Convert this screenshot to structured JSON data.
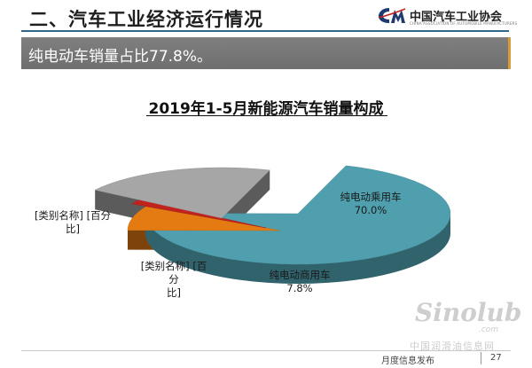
{
  "header": {
    "title": "二、汽车工业经济运行情况",
    "logo_text": "中国汽车工业协会",
    "logo_en": "CHINA ASSOCIATION OF AUTOMOBILE MANUFACTURERS"
  },
  "banner": {
    "text": "纯电动车销量占比77.8%。"
  },
  "chart_data": {
    "type": "pie",
    "title": "2019年1-5月新能源汽车销量构成",
    "slices": [
      {
        "label": "纯电动乘用车",
        "value": 70.0,
        "value_text": "70.0%",
        "color": "#4f9fae"
      },
      {
        "label": "纯电动商用车",
        "value": 7.8,
        "value_text": "7.8%",
        "color": "#e37a12"
      },
      {
        "label": "[类别名称] [百分比]",
        "value": 1.5,
        "value_text": "",
        "color": "#c0231e"
      },
      {
        "label": "[类别名称] [百分比]",
        "value": 20.7,
        "value_text": "",
        "color": "#a6a6a6"
      }
    ],
    "labels": [
      {
        "lines": [
          "纯电动乘用车",
          "70.0%"
        ]
      },
      {
        "lines": [
          "纯电动商用车",
          "7.8%"
        ]
      },
      {
        "lines": [
          "[类别名称] [百",
          "分",
          "比]"
        ]
      },
      {
        "lines": [
          "[类别名称] [百分",
          "比]"
        ]
      }
    ],
    "legend": "none"
  },
  "footer": {
    "text": "月度信息发布",
    "page": "27"
  },
  "watermark": {
    "logo": "Sinolub",
    "com": ".com",
    "cn": "中国润滑油信息网"
  }
}
